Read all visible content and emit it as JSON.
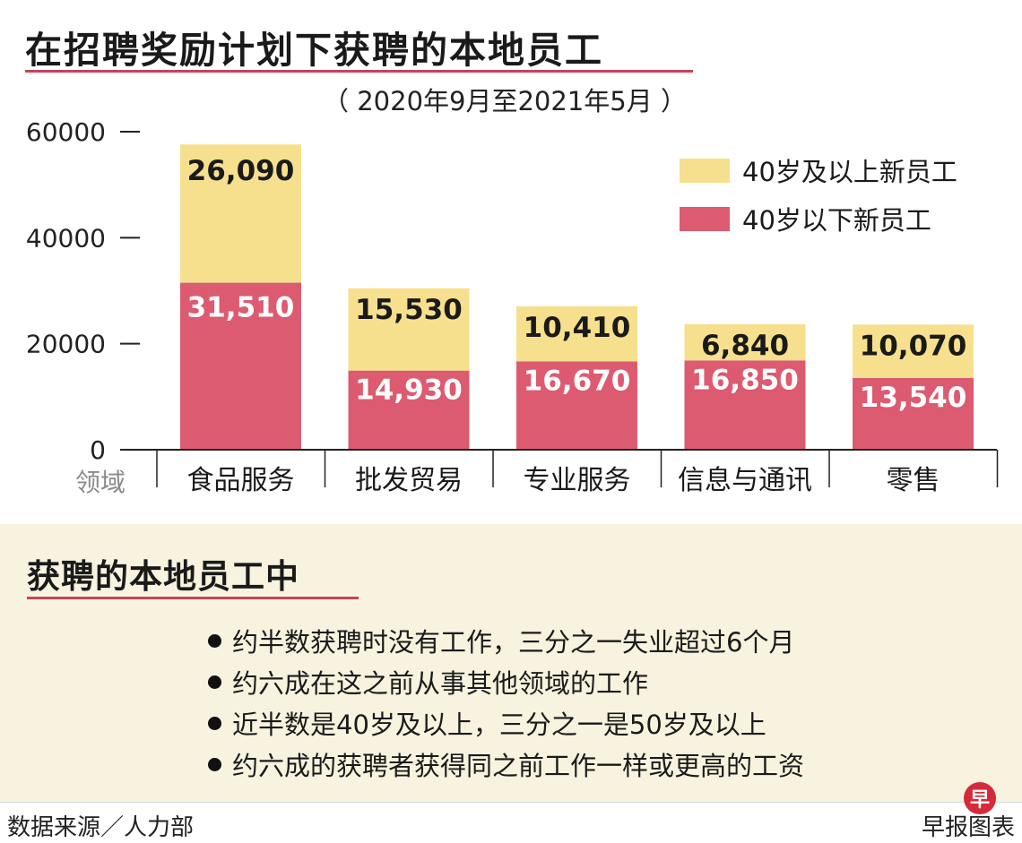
{
  "title": "在招聘奖励计划下获聘的本地员工",
  "subtitle": "（ 2020年9月至2021年5月 ）",
  "colors": {
    "accent_line": "#c8435a",
    "under40": "#dc5b71",
    "over40": "#f6e08e",
    "bottom_panel": "#f7f3df"
  },
  "chart_data": {
    "type": "bar",
    "stacked": true,
    "xlabel": "领域",
    "ylabel": "",
    "ylim": [
      0,
      60000
    ],
    "yticks": [
      "60000",
      "40000",
      "20000",
      "0"
    ],
    "categories": [
      "食品服务",
      "批发贸易",
      "专业服务",
      "信息与通讯",
      "零售"
    ],
    "series": [
      {
        "name": "40岁以下新员工",
        "color": "#dc5b71",
        "values": [
          31510,
          14930,
          16670,
          16850,
          13540
        ],
        "labels": [
          "31,510",
          "14,930",
          "16,670",
          "16,850",
          "13,540"
        ]
      },
      {
        "name": "40岁及以上新员工",
        "color": "#f6e08e",
        "values": [
          26090,
          15530,
          10410,
          6840,
          10070
        ],
        "labels": [
          "26,090",
          "15,530",
          "10,410",
          "6,840",
          "10,070"
        ]
      }
    ],
    "legend_position": "top-right",
    "grid": false
  },
  "section": {
    "title": "获聘的本地员工中",
    "bullets": [
      "约半数获聘时没有工作，三分之一失业超过6个月",
      "约六成在这之前从事其他领域的工作",
      "近半数是40岁及以上，三分之一是50岁及以上",
      "约六成的获聘者获得同之前工作一样或更高的工资"
    ]
  },
  "footer": {
    "source": "数据来源／人力部",
    "credit": "早报图表",
    "logo_text": "早"
  }
}
